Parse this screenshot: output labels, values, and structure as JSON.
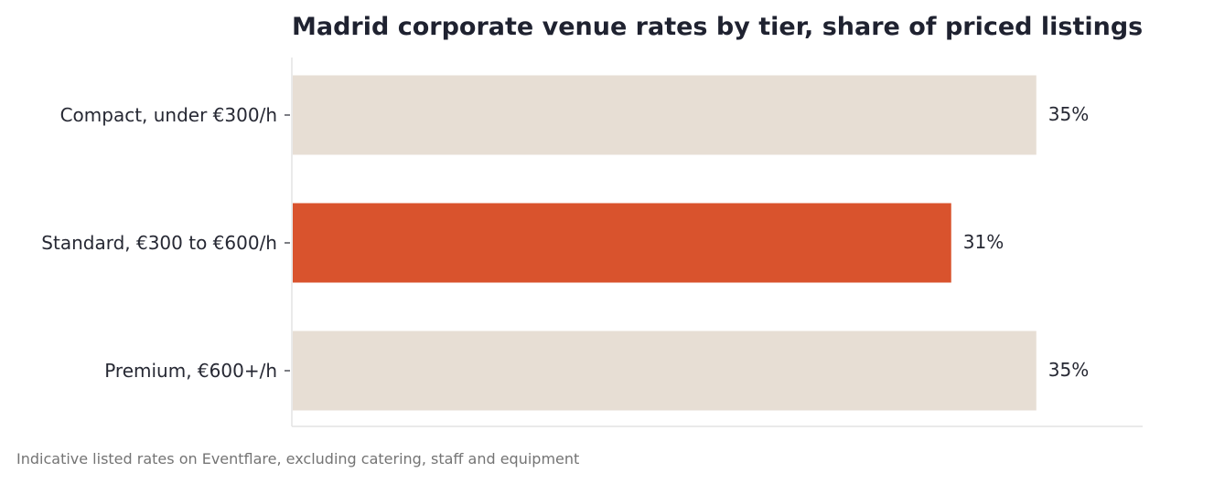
{
  "chart_data": {
    "type": "bar",
    "orientation": "horizontal",
    "title": "Madrid corporate venue rates by tier, share of priced listings",
    "categories": [
      "Compact, under €300/h",
      "Standard, €300 to €600/h",
      "Premium, €600+/h"
    ],
    "values": [
      35,
      31,
      35
    ],
    "value_labels": [
      "35%",
      "31%",
      "35%"
    ],
    "highlight_index": 1,
    "xlim": [
      0,
      40
    ],
    "xlabel": "",
    "ylabel": "",
    "grid": false,
    "legend": "none"
  },
  "footnote": "Indicative listed rates on Eventflare, excluding catering, staff and equipment",
  "colors": {
    "bar_default": "#e7ded4",
    "bar_highlight": "#d9532d",
    "text": "#262833",
    "title": "#1f2230",
    "axis": "#e3e3e3",
    "note": "#747474"
  }
}
